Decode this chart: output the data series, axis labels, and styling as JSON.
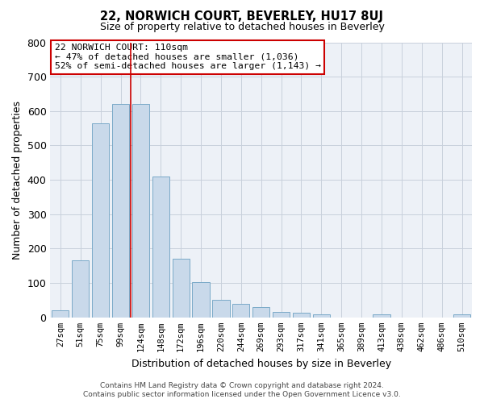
{
  "title": "22, NORWICH COURT, BEVERLEY, HU17 8UJ",
  "subtitle": "Size of property relative to detached houses in Beverley",
  "xlabel": "Distribution of detached houses by size in Beverley",
  "ylabel": "Number of detached properties",
  "footer_line1": "Contains HM Land Registry data © Crown copyright and database right 2024.",
  "footer_line2": "Contains public sector information licensed under the Open Government Licence v3.0.",
  "categories": [
    "27sqm",
    "51sqm",
    "75sqm",
    "99sqm",
    "124sqm",
    "148sqm",
    "172sqm",
    "196sqm",
    "220sqm",
    "244sqm",
    "269sqm",
    "293sqm",
    "317sqm",
    "341sqm",
    "365sqm",
    "389sqm",
    "413sqm",
    "438sqm",
    "462sqm",
    "486sqm",
    "510sqm"
  ],
  "values": [
    20,
    165,
    565,
    620,
    620,
    410,
    170,
    103,
    52,
    40,
    30,
    15,
    14,
    10,
    0,
    0,
    8,
    0,
    0,
    0,
    8
  ],
  "bar_color": "#c9d9ea",
  "bar_edge_color": "#7baac8",
  "grid_color": "#c8d0dc",
  "background_color": "#edf1f7",
  "vline_x": 3.52,
  "vline_color": "#cc0000",
  "annotation_title": "22 NORWICH COURT: 110sqm",
  "annotation_line1": "← 47% of detached houses are smaller (1,036)",
  "annotation_line2": "52% of semi-detached houses are larger (1,143) →",
  "annotation_box_facecolor": "#ffffff",
  "annotation_box_edgecolor": "#cc0000",
  "ylim": [
    0,
    800
  ],
  "yticks": [
    0,
    100,
    200,
    300,
    400,
    500,
    600,
    700,
    800
  ]
}
